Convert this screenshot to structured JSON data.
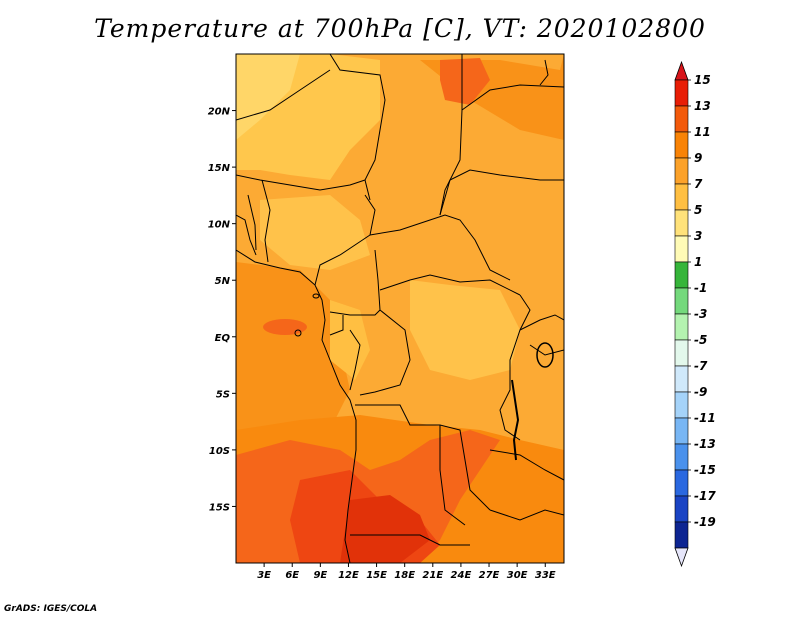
{
  "title": "Temperature at 700hPa [C], VT: 2020102800",
  "credit": "GrADS: IGES/COLA",
  "map": {
    "lon_range": [
      0,
      35
    ],
    "lat_range": [
      -20,
      25
    ],
    "lat_ticks": [
      {
        "label": "20N",
        "value": 20
      },
      {
        "label": "15N",
        "value": 15
      },
      {
        "label": "10N",
        "value": 10
      },
      {
        "label": "5N",
        "value": 5
      },
      {
        "label": "EQ",
        "value": 0
      },
      {
        "label": "5S",
        "value": -5
      },
      {
        "label": "10S",
        "value": -10
      },
      {
        "label": "15S",
        "value": -15
      }
    ],
    "lon_ticks": [
      {
        "label": "3E",
        "value": 3
      },
      {
        "label": "6E",
        "value": 6
      },
      {
        "label": "9E",
        "value": 9
      },
      {
        "label": "12E",
        "value": 12
      },
      {
        "label": "15E",
        "value": 15
      },
      {
        "label": "18E",
        "value": 18
      },
      {
        "label": "21E",
        "value": 21
      },
      {
        "label": "24E",
        "value": 24
      },
      {
        "label": "27E",
        "value": 27
      },
      {
        "label": "30E",
        "value": 30
      },
      {
        "label": "33E",
        "value": 33
      }
    ]
  },
  "colorbar": {
    "labels": [
      "15",
      "13",
      "11",
      "9",
      "7",
      "5",
      "3",
      "1",
      "-1",
      "-3",
      "-5",
      "-7",
      "-9",
      "-11",
      "-13",
      "-15",
      "-17",
      "-19"
    ],
    "colors": [
      "#e81e06",
      "#f35a0b",
      "#f98306",
      "#fca22a",
      "#ffbf42",
      "#ffe27a",
      "#fffbb6",
      "#36b53a",
      "#74d97c",
      "#b4f3b0",
      "#e3f8ec",
      "#d0e9fb",
      "#a5d3f9",
      "#78b6f4",
      "#4a91ec",
      "#2a68e0",
      "#1a44c4",
      "#0d2592",
      "#0a1060"
    ],
    "over_color": "#d8141a",
    "under_color": "#e6e6fa"
  }
}
